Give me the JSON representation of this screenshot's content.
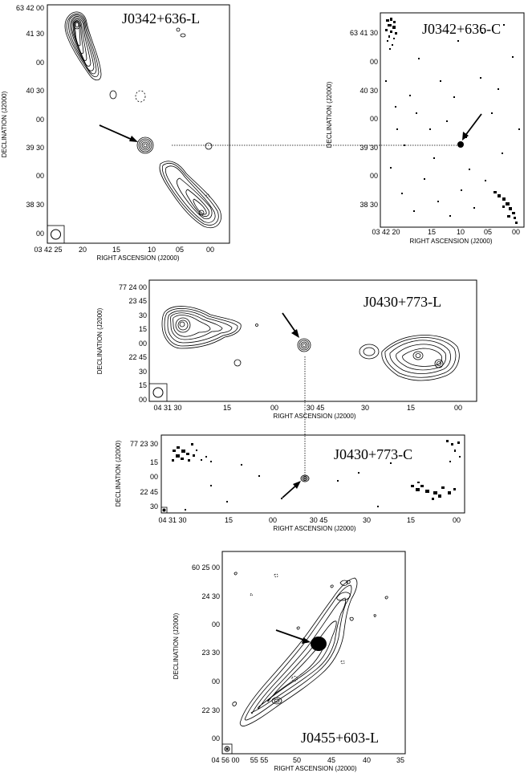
{
  "axes": {
    "right_ascension": "RIGHT ASCENSION (J2000)",
    "declination": "DECLINATION (J2000)"
  },
  "panels": [
    {
      "title": "J0342+636-L",
      "x_ticks": [
        "03 42 25",
        "20",
        "15",
        "10",
        "05",
        "00"
      ],
      "y_ticks": [
        "63 42 00",
        "41 30",
        "00",
        "40 30",
        "00",
        "39 30",
        "00",
        "38 30",
        "00"
      ]
    },
    {
      "title": "J0342+636-C",
      "x_ticks": [
        "03 42 20",
        "15",
        "10",
        "05",
        "00"
      ],
      "y_ticks": [
        "63 41 30",
        "00",
        "40 30",
        "00",
        "39 30",
        "00",
        "38 30"
      ]
    },
    {
      "title": "J0430+773-L",
      "x_ticks": [
        "04 31 30",
        "15",
        "00",
        "30 45",
        "30",
        "15",
        "00"
      ],
      "y_ticks": [
        "77 24 00",
        "23 45",
        "30",
        "15",
        "00",
        "22 45",
        "30",
        "15",
        "00"
      ]
    },
    {
      "title": "J0430+773-C",
      "x_ticks": [
        "04 31 30",
        "15",
        "00",
        "30 45",
        "30",
        "15",
        "00"
      ],
      "y_ticks": [
        "77 23 30",
        "15",
        "00",
        "22 45",
        "30"
      ]
    },
    {
      "title": "J0455+603-L",
      "x_ticks": [
        "04 56 00",
        "55 55",
        "50",
        "45",
        "40",
        "35"
      ],
      "y_ticks": [
        "60 25 00",
        "24 30",
        "00",
        "23 30",
        "00",
        "22 30",
        "00"
      ]
    }
  ]
}
